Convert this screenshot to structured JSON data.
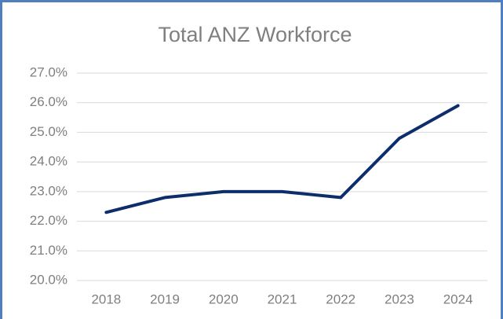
{
  "chart_data": {
    "type": "line",
    "title": "Total ANZ Workforce",
    "categories": [
      "2018",
      "2019",
      "2020",
      "2021",
      "2022",
      "2023",
      "2024"
    ],
    "series": [
      {
        "name": "Total ANZ Workforce",
        "color": "#0e2d6b",
        "values": [
          22.3,
          22.8,
          23.0,
          23.0,
          22.8,
          24.8,
          25.9
        ]
      }
    ],
    "ylim": [
      20,
      27
    ],
    "yticks": [
      {
        "value": 20,
        "label": "20.0%"
      },
      {
        "value": 21,
        "label": "21.0%"
      },
      {
        "value": 22,
        "label": "22.0%"
      },
      {
        "value": 23,
        "label": "23.0%"
      },
      {
        "value": 24,
        "label": "24.0%"
      },
      {
        "value": 25,
        "label": "25.0%"
      },
      {
        "value": 26,
        "label": "26.0%"
      },
      {
        "value": 27,
        "label": "27.0%"
      }
    ],
    "grid": true
  }
}
